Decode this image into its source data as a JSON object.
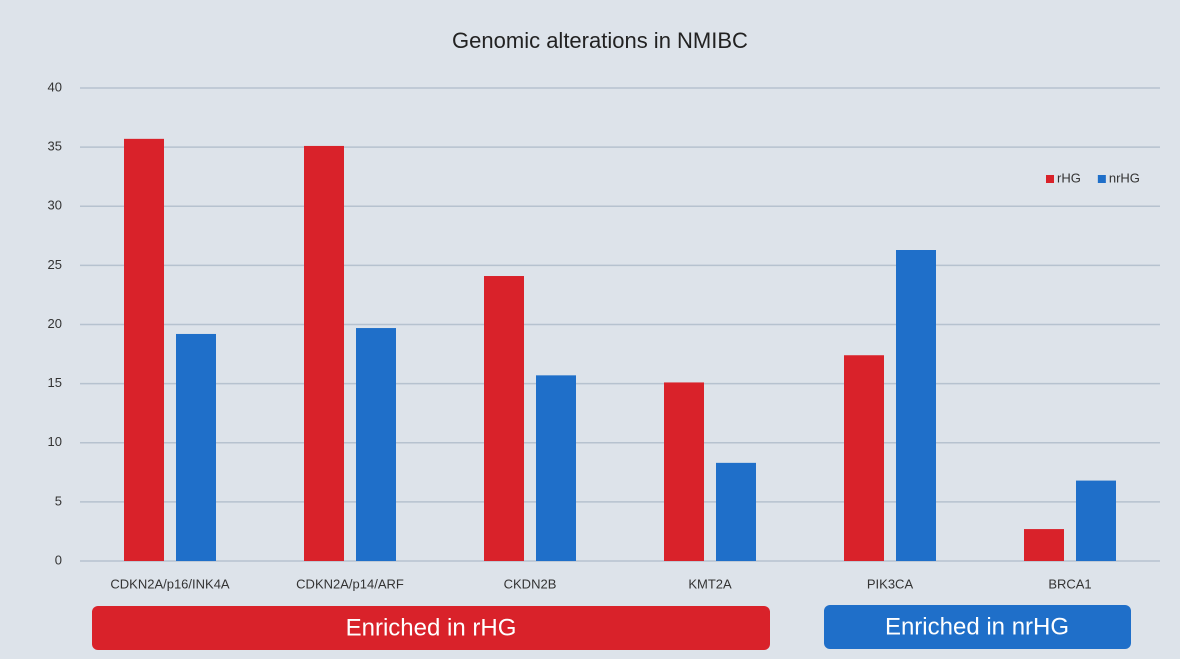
{
  "chart_data": {
    "type": "bar",
    "title": "Genomic alterations in NMIBC",
    "categories": [
      "CDKN2A/p16/INK4A",
      "CDKN2A/p14/ARF",
      "CKDN2B",
      "KMT2A",
      "PIK3CA",
      "BRCA1"
    ],
    "series": [
      {
        "name": "rHG",
        "color": "#d9222a",
        "values": [
          35.7,
          35.1,
          24.1,
          15.1,
          17.4,
          2.7
        ]
      },
      {
        "name": "nrHG",
        "color": "#1f6fc9",
        "values": [
          19.2,
          19.7,
          15.7,
          8.3,
          26.3,
          6.8
        ]
      }
    ],
    "ylim": [
      0,
      40
    ],
    "yticks": [
      0,
      5,
      10,
      15,
      20,
      25,
      30,
      35,
      40
    ],
    "grid": true,
    "legend": "top-right",
    "annotations": [
      "Enriched in rHG",
      "Enriched in nrHG"
    ]
  }
}
